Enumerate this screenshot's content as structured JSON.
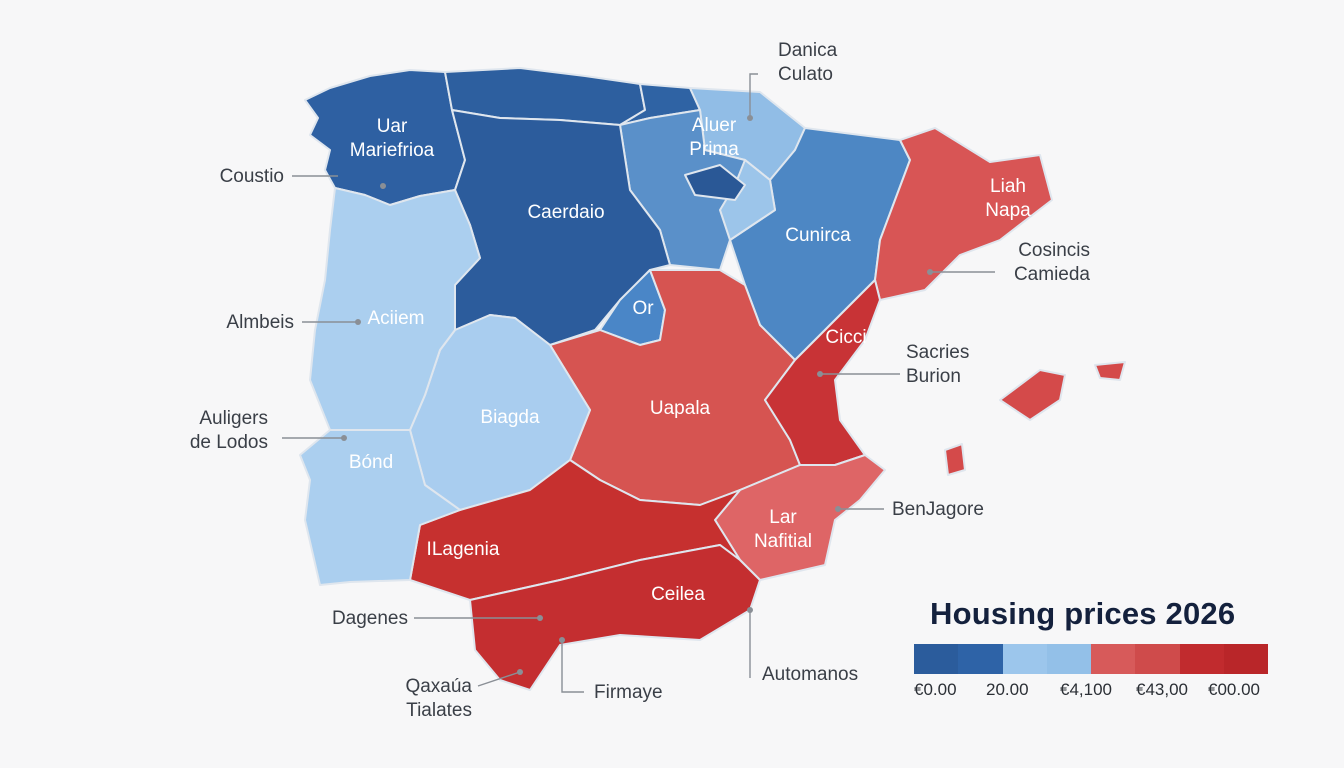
{
  "map": {
    "regions": [
      {
        "id": "galicia",
        "label_lines": [
          "Uar",
          "Mariefrioa"
        ],
        "color": "#2e60a2"
      },
      {
        "id": "asturias",
        "label_lines": [],
        "color": "#2d5f9f"
      },
      {
        "id": "cantabria",
        "label_lines": [],
        "color": "#2f63a4"
      },
      {
        "id": "basque",
        "label_lines": [
          "Aluer",
          "Prima"
        ],
        "color": "#91bde6"
      },
      {
        "id": "navarra",
        "label_lines": [],
        "color": "#9cc5ea"
      },
      {
        "id": "rioja",
        "label_lines": [],
        "color": "#5a90c9"
      },
      {
        "id": "aragon",
        "label_lines": [
          "Cunirca"
        ],
        "color": "#4d87c4"
      },
      {
        "id": "catalonia",
        "label_lines": [
          "Liah",
          "Napa"
        ],
        "color": "#d85555"
      },
      {
        "id": "castilla-leon",
        "label_lines": [
          "Caerdaio"
        ],
        "color": "#2c5c9c"
      },
      {
        "id": "madrid",
        "label_lines": [
          "Or"
        ],
        "color": "#4a86c7"
      },
      {
        "id": "castilla-mancha",
        "label_lines": [
          "Uapala"
        ],
        "color": "#d65451"
      },
      {
        "id": "valencia",
        "label_lines": [
          "Cicci"
        ],
        "color": "#c83336"
      },
      {
        "id": "murcia",
        "label_lines": [
          "Lar",
          "Nafitial"
        ],
        "color": "#de6566"
      },
      {
        "id": "extremadura",
        "label_lines": [
          "Biagda"
        ],
        "color": "#a9cdef"
      },
      {
        "id": "andalucia-north",
        "label_lines": [
          "ILagenia"
        ],
        "color": "#c6302f"
      },
      {
        "id": "andalucia-south",
        "label_lines": [
          "Ceilea"
        ],
        "color": "#c42e30"
      },
      {
        "id": "portugal-north",
        "label_lines": [
          "Aciiem"
        ],
        "color": "#abcfef"
      },
      {
        "id": "portugal-south",
        "label_lines": [
          "Bónd"
        ],
        "color": "#abcfef"
      },
      {
        "id": "balearic",
        "label_lines": [],
        "color": "#d44a4a"
      },
      {
        "id": "dark-enclave",
        "label_lines": [],
        "color": "#2a5896"
      }
    ],
    "callouts": [
      {
        "id": "callout-danica",
        "lines": [
          "Danica",
          "Culato"
        ]
      },
      {
        "id": "callout-coustio",
        "lines": [
          "Coustio"
        ]
      },
      {
        "id": "callout-cosincis",
        "lines": [
          "Cosincis",
          "Camieda"
        ]
      },
      {
        "id": "callout-almbeis",
        "lines": [
          "Almbeis"
        ]
      },
      {
        "id": "callout-sacries",
        "lines": [
          "Sacries",
          "Burion"
        ]
      },
      {
        "id": "callout-auligers",
        "lines": [
          "Auligers",
          "de Lodos"
        ]
      },
      {
        "id": "callout-benjagore",
        "lines": [
          "BenJagore"
        ]
      },
      {
        "id": "callout-dagenes",
        "lines": [
          "Dagenes"
        ]
      },
      {
        "id": "callout-automanos",
        "lines": [
          "Automanos"
        ]
      },
      {
        "id": "callout-qaxaua",
        "lines": [
          "Qaxaúa",
          "Tialates"
        ]
      },
      {
        "id": "callout-firmaye",
        "lines": [
          "Firmaye"
        ]
      }
    ]
  },
  "legend": {
    "title": "Housing prices 2026",
    "colors": [
      "#2b5c9c",
      "#2e63a7",
      "#9cc6ec",
      "#93c0e8",
      "#d75a5a",
      "#cf4b4b",
      "#c12b2e",
      "#b92629"
    ],
    "ticks": [
      "€0.00",
      "20.00",
      "€4,100",
      "€43,00",
      "€00.00"
    ]
  }
}
